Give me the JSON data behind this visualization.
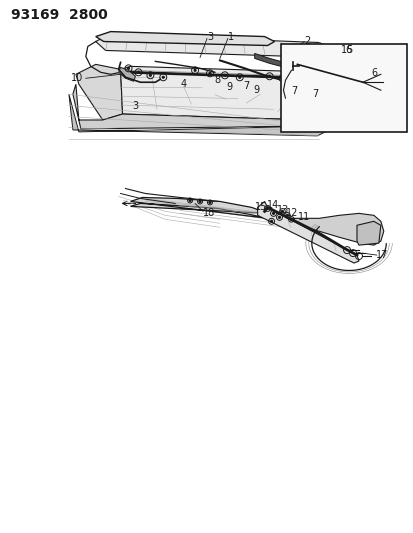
{
  "title": "93169  2800",
  "bg_color": "#ffffff",
  "lc": "#1a1a1a",
  "title_fontsize": 10,
  "label_fontsize": 7,
  "fig_width": 4.14,
  "fig_height": 5.33,
  "dpi": 100
}
